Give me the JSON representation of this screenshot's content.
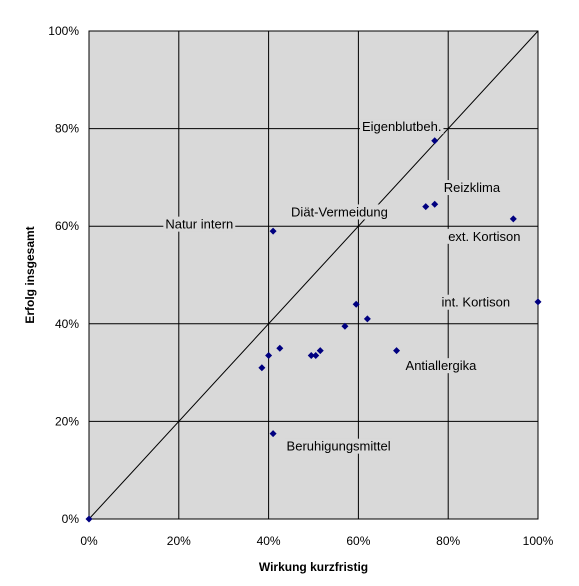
{
  "chart_data": {
    "type": "scatter",
    "xlabel": "Wirkung kurzfristig",
    "ylabel": "Erfolg insgesamt",
    "xlim": [
      0,
      100
    ],
    "ylim": [
      0,
      100
    ],
    "x_ticks": [
      "0%",
      "20%",
      "40%",
      "60%",
      "80%",
      "100%"
    ],
    "y_ticks": [
      "0%",
      "20%",
      "40%",
      "60%",
      "80%",
      "100%"
    ],
    "grid": true,
    "plot_background": "#d9d9d9",
    "marker_color": "#000080",
    "reference_line": "diagonal y = x",
    "points": [
      {
        "x": 0,
        "y": 0
      },
      {
        "x": 77,
        "y": 77.5
      },
      {
        "x": 75,
        "y": 64
      },
      {
        "x": 77,
        "y": 64.5
      },
      {
        "x": 94.5,
        "y": 61.5
      },
      {
        "x": 41,
        "y": 59
      },
      {
        "x": 100,
        "y": 44.5
      },
      {
        "x": 59.5,
        "y": 44
      },
      {
        "x": 62,
        "y": 41
      },
      {
        "x": 57,
        "y": 39.5
      },
      {
        "x": 68.5,
        "y": 34.5
      },
      {
        "x": 42.5,
        "y": 35
      },
      {
        "x": 40,
        "y": 33.5
      },
      {
        "x": 49.5,
        "y": 33.5
      },
      {
        "x": 50.5,
        "y": 33.5
      },
      {
        "x": 51.5,
        "y": 34.5
      },
      {
        "x": 38.5,
        "y": 31
      },
      {
        "x": 41,
        "y": 17.5
      }
    ],
    "annotations": [
      {
        "text": "Eigenblutbeh.",
        "x": 78.5,
        "y": 79.5,
        "anchor": "end"
      },
      {
        "text": "Reizklima",
        "x": 79,
        "y": 67,
        "anchor": "start"
      },
      {
        "text": "Diät-Vermeidung",
        "x": 45,
        "y": 62,
        "anchor": "start"
      },
      {
        "text": "Natur intern",
        "x": 17,
        "y": 59.5,
        "anchor": "start"
      },
      {
        "text": "ext. Kortison",
        "x": 80,
        "y": 57,
        "anchor": "start"
      },
      {
        "text": "int. Kortison",
        "x": 78.5,
        "y": 43.5,
        "anchor": "start"
      },
      {
        "text": "Antiallergika",
        "x": 70.5,
        "y": 30.5,
        "anchor": "start"
      },
      {
        "text": "Beruhigungsmittel",
        "x": 44,
        "y": 14,
        "anchor": "start"
      }
    ]
  }
}
